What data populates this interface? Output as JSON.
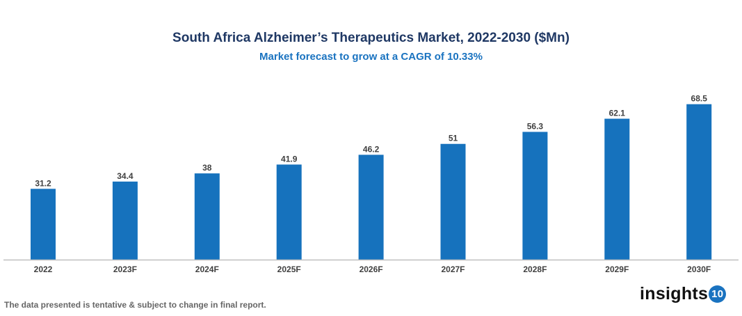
{
  "chart_data": {
    "type": "bar",
    "title": "South Africa Alzheimer’s Therapeutics Market, 2022-2030 ($Mn)",
    "subtitle": "Market forecast to grow at a CAGR of 10.33%",
    "categories": [
      "2022",
      "2023F",
      "2024F",
      "2025F",
      "2026F",
      "2027F",
      "2028F",
      "2029F",
      "2030F"
    ],
    "values": [
      31.2,
      34.4,
      38,
      41.9,
      46.2,
      51,
      56.3,
      62.1,
      68.5
    ],
    "xlabel": "",
    "ylabel": "",
    "grid": false,
    "legend": "none",
    "bar_color": "#1672bd"
  },
  "footer": {
    "disclaimer": "The data presented is tentative & subject to change in final report."
  },
  "logo": {
    "text": "insights",
    "badge": "10"
  }
}
